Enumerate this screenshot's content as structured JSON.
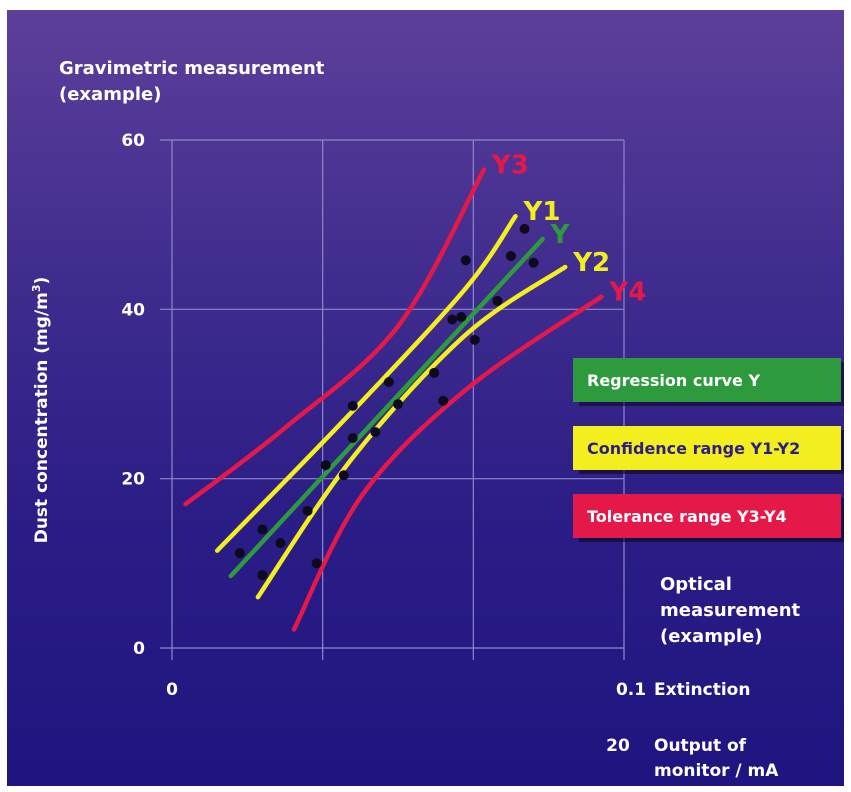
{
  "chart_data": {
    "type": "scatter",
    "top_label": [
      "Gravimetric measurement",
      "(example)"
    ],
    "ylabel": "Dust concentration (mg/m³)",
    "ylabel_main": "Dust concentration (mg/m",
    "ylabel_sup": "3",
    "ylabel_close": ")",
    "xlabel": [
      "Optical",
      "measurement",
      "(example)"
    ],
    "ylim": [
      0,
      60
    ],
    "yticks": [
      "0",
      "20",
      "40",
      "60"
    ],
    "x_zero_label": "0",
    "x_scale_rows": [
      {
        "value": "0.1",
        "label": [
          "Extinction"
        ]
      },
      {
        "value": "20",
        "label": [
          "Output of",
          "monitor / mA"
        ]
      }
    ],
    "grid": true,
    "points": [
      [
        0.15,
        11.2
      ],
      [
        0.2,
        14
      ],
      [
        0.2,
        8.6
      ],
      [
        0.24,
        12.4
      ],
      [
        0.3,
        16.2
      ],
      [
        0.32,
        10
      ],
      [
        0.34,
        21.6
      ],
      [
        0.38,
        20.4
      ],
      [
        0.4,
        24.8
      ],
      [
        0.4,
        28.6
      ],
      [
        0.45,
        25.5
      ],
      [
        0.48,
        31.4
      ],
      [
        0.5,
        28.8
      ],
      [
        0.58,
        32.5
      ],
      [
        0.6,
        29.2
      ],
      [
        0.62,
        38.8
      ],
      [
        0.64,
        39.1
      ],
      [
        0.65,
        45.8
      ],
      [
        0.67,
        36.4
      ],
      [
        0.72,
        41
      ],
      [
        0.75,
        46.3
      ],
      [
        0.78,
        49.5
      ],
      [
        0.8,
        45.5
      ]
    ],
    "series": [
      {
        "name": "Y",
        "color": "#2e9a3e",
        "points": [
          [
            0.13,
            8.5
          ],
          [
            0.82,
            48.3
          ]
        ]
      },
      {
        "name": "Y1",
        "color": "#f3ee1e",
        "points": [
          [
            0.1,
            11.5
          ],
          [
            0.4,
            28
          ],
          [
            0.65,
            42.5
          ],
          [
            0.76,
            51
          ]
        ]
      },
      {
        "name": "Y2",
        "color": "#f3ee1e",
        "points": [
          [
            0.19,
            6
          ],
          [
            0.4,
            22.5
          ],
          [
            0.65,
            37
          ],
          [
            0.87,
            45
          ]
        ]
      },
      {
        "name": "Y3",
        "color": "#e5184a",
        "points": [
          [
            0.03,
            17
          ],
          [
            0.25,
            26
          ],
          [
            0.5,
            38
          ],
          [
            0.69,
            56.5
          ]
        ]
      },
      {
        "name": "Y4",
        "color": "#e5184a",
        "points": [
          [
            0.27,
            2.2
          ],
          [
            0.42,
            18
          ],
          [
            0.65,
            30.5
          ],
          [
            0.95,
            41.5
          ]
        ]
      }
    ],
    "legend": [
      {
        "label": "Regression curve Y",
        "color": "#2e9a3e"
      },
      {
        "label": "Confidence range Y1-Y2",
        "color": "#f3ee1e"
      },
      {
        "label": "Tolerance range Y3-Y4",
        "color": "#e5184a"
      }
    ]
  }
}
